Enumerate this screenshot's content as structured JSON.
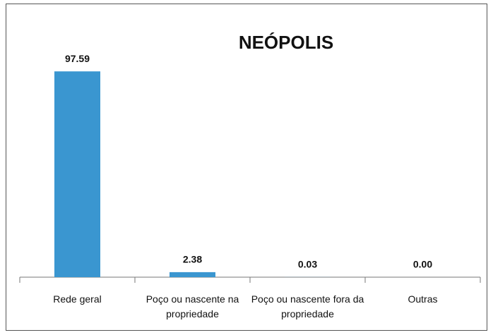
{
  "chart_data": {
    "type": "bar",
    "title": "NEÓPOLIS",
    "categories": [
      "Rede geral",
      "Poço ou nascente na propriedade",
      "Poço ou nascente fora da propriedade",
      "Outras"
    ],
    "values": [
      97.59,
      2.38,
      0.03,
      0
    ],
    "value_labels": [
      "97.59",
      "2.38",
      "0.03",
      "0.00"
    ],
    "color": "#3a96d0",
    "ylim": [
      0,
      100
    ]
  }
}
